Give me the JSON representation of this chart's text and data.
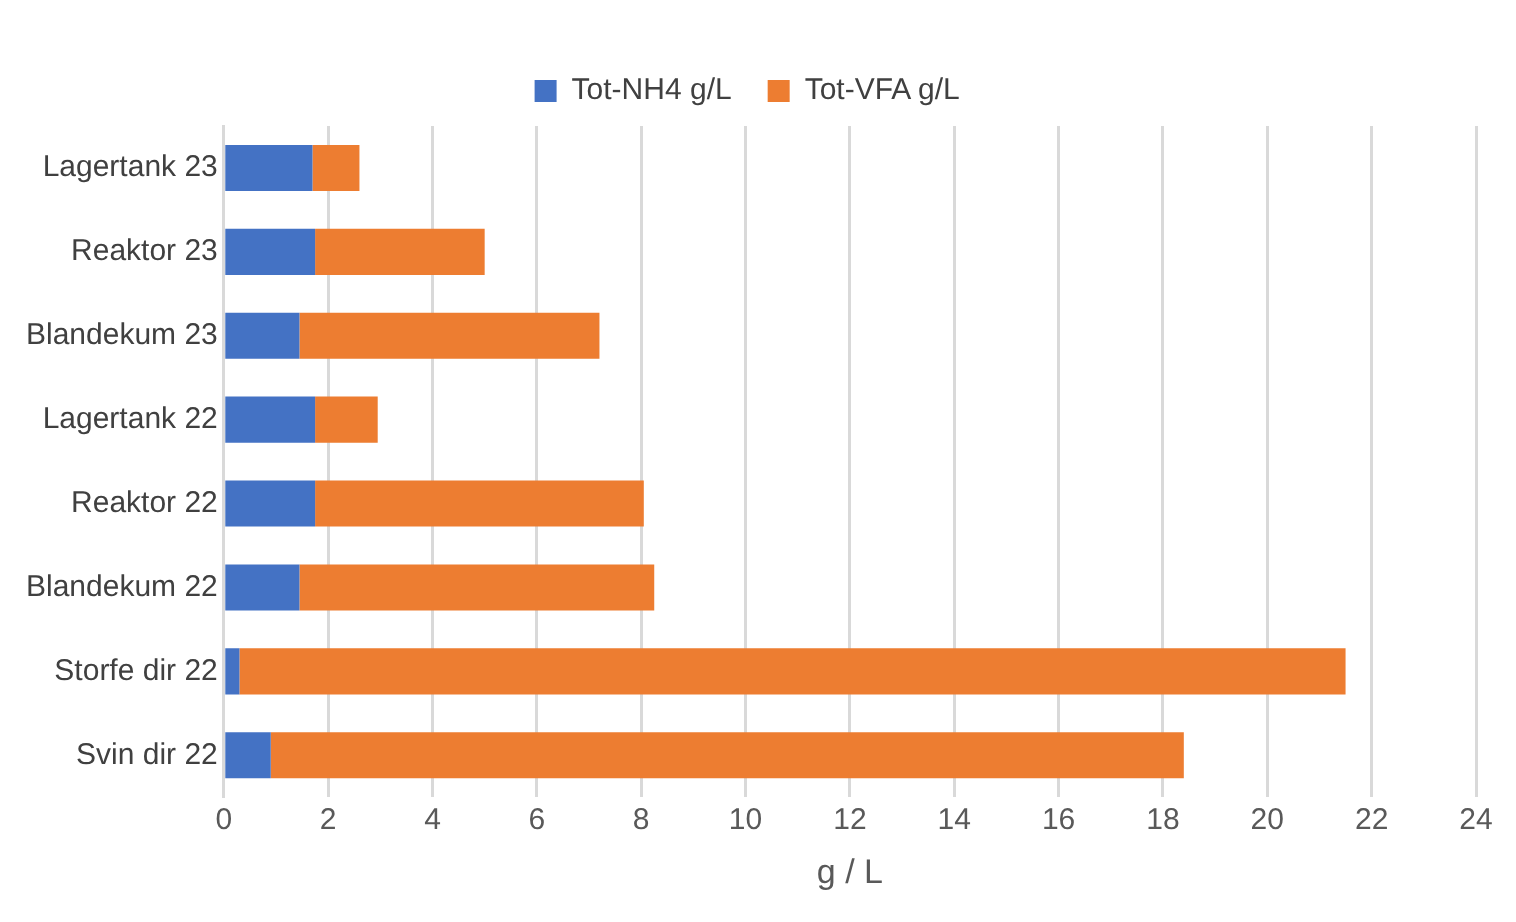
{
  "chart_data": {
    "type": "bar",
    "orientation": "horizontal",
    "stacked": true,
    "xlabel": "g / L",
    "categories": [
      "Lagertank 23",
      "Reaktor 23",
      "Blandekum 23",
      "Lagertank 22",
      "Reaktor 22",
      "Blandekum 22",
      "Storfe dir 22",
      "Svin dir 22"
    ],
    "series": [
      {
        "name": "Tot-NH4 g/L",
        "color": "#4472c4",
        "values": [
          1.7,
          1.75,
          1.45,
          1.75,
          1.75,
          1.45,
          0.3,
          0.9
        ]
      },
      {
        "name": "Tot-VFA g/L",
        "color": "#ed7d31",
        "values": [
          0.9,
          3.25,
          5.75,
          1.2,
          6.3,
          6.8,
          21.2,
          17.5
        ]
      }
    ],
    "xlim": [
      0,
      24
    ],
    "xticks": [
      0,
      2,
      4,
      6,
      8,
      10,
      12,
      14,
      16,
      18,
      20,
      22,
      24
    ],
    "grid": "x",
    "legend": "top"
  }
}
